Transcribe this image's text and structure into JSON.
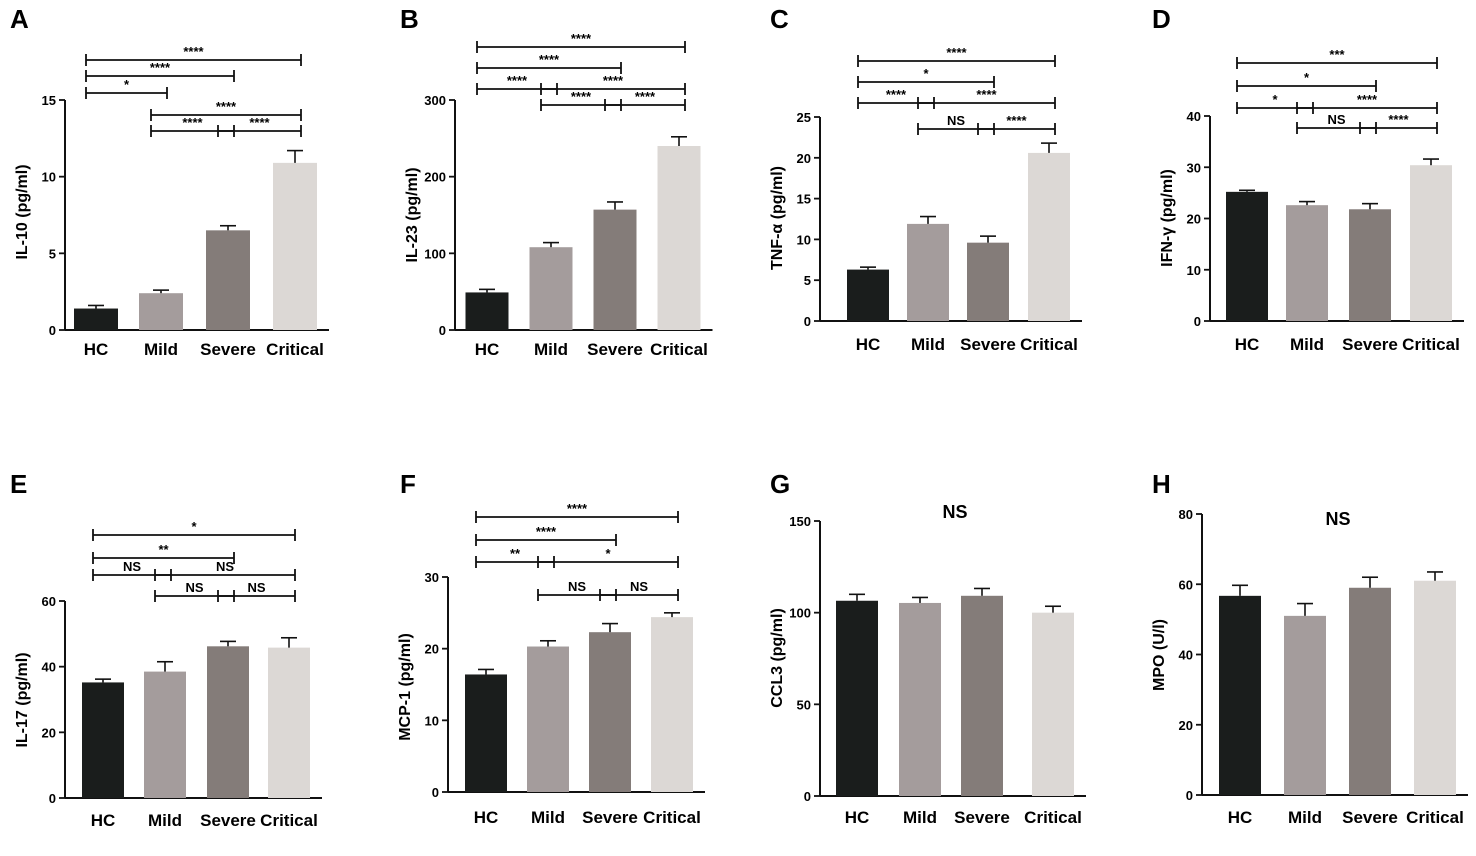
{
  "bar_colors": [
    "#1a1d1c",
    "#a49c9c",
    "#847c79",
    "#dcd8d5"
  ],
  "chart_data": [
    {
      "panel": "A",
      "type": "bar",
      "categories": [
        "HC",
        "Mild",
        "Severe",
        "Critical"
      ],
      "values": [
        1.4,
        2.4,
        6.5,
        10.9
      ],
      "errors": [
        0.2,
        0.2,
        0.3,
        0.8
      ],
      "ylabel": "IL-10 (pg/ml)",
      "ylim": [
        0,
        15
      ],
      "yticks": [
        0,
        5,
        10,
        15
      ],
      "note": "",
      "comparisons": [
        {
          "from": 0,
          "to": 3,
          "label": "****"
        },
        {
          "from": 0,
          "to": 2,
          "label": "****"
        },
        {
          "from": 0,
          "to": 1,
          "label": "*"
        },
        {
          "from": 1,
          "to": 3,
          "label": "****"
        },
        {
          "from": 1,
          "to": 2,
          "label": "****"
        },
        {
          "from": 2,
          "to": 3,
          "label": "****"
        }
      ]
    },
    {
      "panel": "B",
      "type": "bar",
      "categories": [
        "HC",
        "Mild",
        "Severe",
        "Critical"
      ],
      "values": [
        49,
        108,
        157,
        240
      ],
      "errors": [
        4,
        6,
        10,
        12
      ],
      "ylabel": "IL-23 (pg/ml)",
      "ylim": [
        0,
        300
      ],
      "yticks": [
        0,
        100,
        200,
        300
      ],
      "note": "",
      "comparisons": [
        {
          "from": 0,
          "to": 3,
          "label": "****"
        },
        {
          "from": 0,
          "to": 2,
          "label": "****"
        },
        {
          "from": 0,
          "to": 1,
          "label": "****"
        },
        {
          "from": 1,
          "to": 3,
          "label": "****"
        },
        {
          "from": 1,
          "to": 2,
          "label": "****"
        },
        {
          "from": 2,
          "to": 3,
          "label": "****"
        }
      ]
    },
    {
      "panel": "C",
      "type": "bar",
      "categories": [
        "HC",
        "Mild",
        "Severe",
        "Critical"
      ],
      "values": [
        6.3,
        11.9,
        9.6,
        20.6
      ],
      "errors": [
        0.3,
        0.9,
        0.8,
        1.2
      ],
      "ylabel": "TNF-α (pg/ml)",
      "ylim": [
        0,
        25
      ],
      "yticks": [
        0,
        5,
        10,
        15,
        20,
        25
      ],
      "note": "",
      "comparisons": [
        {
          "from": 0,
          "to": 3,
          "label": "****"
        },
        {
          "from": 0,
          "to": 2,
          "label": "*"
        },
        {
          "from": 0,
          "to": 1,
          "label": "****"
        },
        {
          "from": 1,
          "to": 3,
          "label": "****"
        },
        {
          "from": 1,
          "to": 2,
          "label": "NS"
        },
        {
          "from": 2,
          "to": 3,
          "label": "****"
        }
      ]
    },
    {
      "panel": "D",
      "type": "bar",
      "categories": [
        "HC",
        "Mild",
        "Severe",
        "Critical"
      ],
      "values": [
        25.2,
        22.6,
        21.8,
        30.4
      ],
      "errors": [
        0.3,
        0.7,
        1.1,
        1.2
      ],
      "ylabel": "IFN-γ (pg/ml)",
      "ylim": [
        0,
        40
      ],
      "yticks": [
        0,
        10,
        20,
        30,
        40
      ],
      "note": "",
      "comparisons": [
        {
          "from": 0,
          "to": 3,
          "label": "***"
        },
        {
          "from": 0,
          "to": 2,
          "label": "*"
        },
        {
          "from": 0,
          "to": 1,
          "label": "*"
        },
        {
          "from": 1,
          "to": 3,
          "label": "****"
        },
        {
          "from": 1,
          "to": 2,
          "label": "NS"
        },
        {
          "from": 2,
          "to": 3,
          "label": "****"
        }
      ]
    },
    {
      "panel": "E",
      "type": "bar",
      "categories": [
        "HC",
        "Mild",
        "Severe",
        "Critical"
      ],
      "values": [
        35.2,
        38.5,
        46.2,
        45.8
      ],
      "errors": [
        1.0,
        3.0,
        1.5,
        3.0
      ],
      "ylabel": "IL-17 (pg/ml)",
      "ylim": [
        0,
        60
      ],
      "yticks": [
        0,
        20,
        40,
        60
      ],
      "note": "",
      "comparisons": [
        {
          "from": 0,
          "to": 3,
          "label": "*"
        },
        {
          "from": 0,
          "to": 2,
          "label": "**"
        },
        {
          "from": 0,
          "to": 1,
          "label": "NS"
        },
        {
          "from": 1,
          "to": 3,
          "label": "NS"
        },
        {
          "from": 1,
          "to": 2,
          "label": "NS"
        },
        {
          "from": 2,
          "to": 3,
          "label": "NS"
        }
      ]
    },
    {
      "panel": "F",
      "type": "bar",
      "categories": [
        "HC",
        "Mild",
        "Severe",
        "Critical"
      ],
      "values": [
        16.4,
        20.3,
        22.3,
        24.4
      ],
      "errors": [
        0.7,
        0.8,
        1.2,
        0.6
      ],
      "ylabel": "MCP-1 (pg/ml)",
      "ylim": [
        0,
        30
      ],
      "yticks": [
        0,
        10,
        20,
        30
      ],
      "note": "",
      "comparisons": [
        {
          "from": 0,
          "to": 3,
          "label": "****"
        },
        {
          "from": 0,
          "to": 2,
          "label": "****"
        },
        {
          "from": 0,
          "to": 1,
          "label": "**"
        },
        {
          "from": 1,
          "to": 3,
          "label": "*"
        },
        {
          "from": 1,
          "to": 2,
          "label": "NS"
        },
        {
          "from": 2,
          "to": 3,
          "label": "NS"
        }
      ]
    },
    {
      "panel": "G",
      "type": "bar",
      "categories": [
        "HC",
        "Mild",
        "Severe",
        "Critical"
      ],
      "values": [
        106.5,
        105.3,
        109.2,
        100.0
      ],
      "errors": [
        3.5,
        3.0,
        4.0,
        3.5
      ],
      "ylabel": "CCL3 (pg/ml)",
      "ylim": [
        0,
        150
      ],
      "yticks": [
        0,
        50,
        100,
        150
      ],
      "note": "NS",
      "comparisons": []
    },
    {
      "panel": "H",
      "type": "bar",
      "categories": [
        "HC",
        "Mild",
        "Severe",
        "Critical"
      ],
      "values": [
        56.7,
        51.0,
        59.0,
        61.0
      ],
      "errors": [
        3.0,
        3.5,
        3.0,
        2.5
      ],
      "ylabel": "MPO (U/l)",
      "ylim": [
        0,
        80
      ],
      "yticks": [
        0,
        20,
        40,
        60,
        80
      ],
      "note": "NS",
      "comparisons": []
    }
  ]
}
